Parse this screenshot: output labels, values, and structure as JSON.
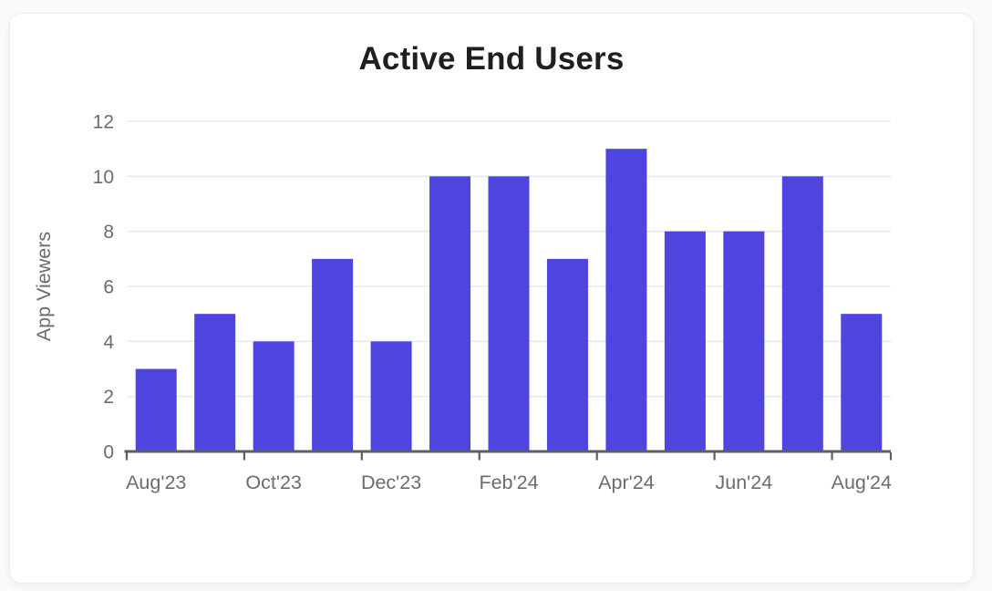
{
  "page": {
    "background": "#fafafa"
  },
  "card": {
    "background": "#ffffff",
    "border_color": "#ededf1"
  },
  "chart_data": {
    "type": "bar",
    "title": "Active End Users",
    "xlabel": "",
    "ylabel": "App Viewers",
    "categories": [
      "Aug'23",
      "Sep'23",
      "Oct'23",
      "Nov'23",
      "Dec'23",
      "Jan'24",
      "Feb'24",
      "Mar'24",
      "Apr'24",
      "May'24",
      "Jun'24",
      "Jul'24",
      "Aug'24"
    ],
    "values": [
      3,
      5,
      4,
      7,
      4,
      10,
      10,
      7,
      11,
      8,
      8,
      10,
      5
    ],
    "x_tick_labels": [
      "Aug'23",
      "Oct'23",
      "Dec'23",
      "Feb'24",
      "Apr'24",
      "Jun'24",
      "Aug'24"
    ],
    "x_tick_label_indices": [
      0,
      2,
      4,
      6,
      8,
      10,
      12
    ],
    "y_ticks": [
      0,
      2,
      4,
      6,
      8,
      10,
      12
    ],
    "ylim": [
      0,
      12
    ],
    "grid": true,
    "legend_position": "none",
    "colors": {
      "bar": "#4e44e0",
      "grid": "#e7e9f4",
      "axis": "#5e5e66",
      "tick_text": "#6b6b72",
      "title": "#1f1f1f"
    }
  }
}
